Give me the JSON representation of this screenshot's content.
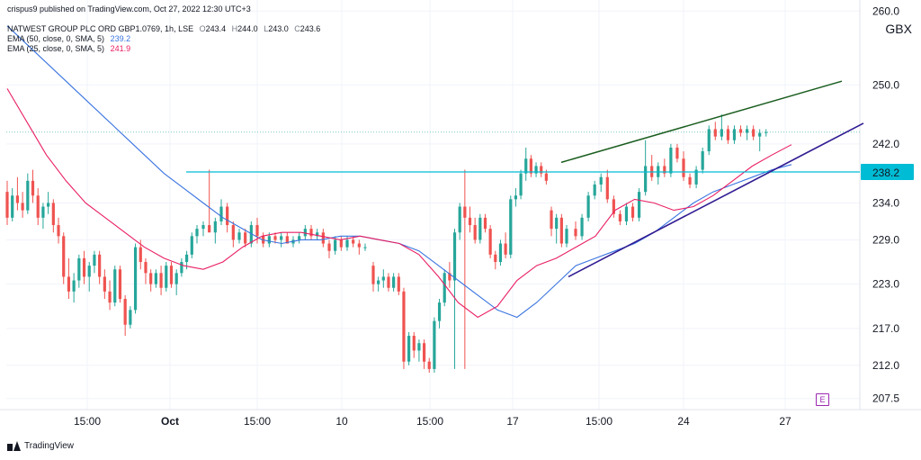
{
  "header": {
    "publisher": "crispus9 published on TradingView.com, Oct 27, 2022 12:30 UTC+3",
    "symbol_line": "NATWEST GROUP PLC ORD GBP1.0769, 1h, LSE",
    "ohlc": [
      {
        "k": "O",
        "v": "243.4"
      },
      {
        "k": "H",
        "v": "244.0"
      },
      {
        "k": "L",
        "v": "243.0"
      },
      {
        "k": "C",
        "v": "243.6"
      }
    ],
    "ema50_label": "EMA (50, close, 0, SMA, 5)",
    "ema50_value": "239.2",
    "ema25_label": "EMA (25, close, 0, SMA, 5)",
    "ema25_value": "241.9"
  },
  "currency": "GBX",
  "footer": {
    "brand": "TradingView"
  },
  "event_badge": "E",
  "colors": {
    "up": "#26a69a",
    "down": "#ef5350",
    "ema50": "#3a74e0",
    "ema25": "#e91e63",
    "hline": "#00bcd4",
    "trend_upper": "#1b5e20",
    "trend_lower": "#311b92",
    "grid": "#f0f3fa",
    "axis_text": "#131722"
  },
  "chart_data": {
    "type": "candlestick",
    "timeframe": "1h",
    "x_tick_labels": [
      "15:00",
      "Oct",
      "15:00",
      "10",
      "15:00",
      "17",
      "15:00",
      "24",
      "27"
    ],
    "y_tick_labels": [
      "260.0",
      "250.0",
      "242.0",
      "234.0",
      "229.0",
      "223.0",
      "217.0",
      "212.0",
      "207.5"
    ],
    "y_ticks": [
      260.0,
      250.0,
      242.0,
      234.0,
      229.0,
      223.0,
      217.0,
      212.0,
      207.5
    ],
    "ylim": [
      206,
      261.5
    ],
    "horizontal_line": {
      "value": 238.2,
      "label": "238.2"
    },
    "last_price": 243.6,
    "candles": [
      [
        235.5,
        237.0,
        231.0,
        232.0
      ],
      [
        232.0,
        236.0,
        231.5,
        235.0
      ],
      [
        235.0,
        237.5,
        233.0,
        234.0
      ],
      [
        234.0,
        235.5,
        232.0,
        233.0
      ],
      [
        233.0,
        238.0,
        232.5,
        237.0
      ],
      [
        237.0,
        238.5,
        234.0,
        235.0
      ],
      [
        235.0,
        236.0,
        231.0,
        232.0
      ],
      [
        232.0,
        234.0,
        230.5,
        233.5
      ],
      [
        233.5,
        235.5,
        232.5,
        234.0
      ],
      [
        234.0,
        234.5,
        230.0,
        231.0
      ],
      [
        231.0,
        232.0,
        228.5,
        229.5
      ],
      [
        229.5,
        230.0,
        223.0,
        224.0
      ],
      [
        224.0,
        226.5,
        221.0,
        222.0
      ],
      [
        222.0,
        224.5,
        220.5,
        223.5
      ],
      [
        223.5,
        227.0,
        222.5,
        226.5
      ],
      [
        226.5,
        227.5,
        223.0,
        224.0
      ],
      [
        224.0,
        226.0,
        222.0,
        225.5
      ],
      [
        225.5,
        227.5,
        224.5,
        227.0
      ],
      [
        227.0,
        227.5,
        223.0,
        224.0
      ],
      [
        224.0,
        225.0,
        221.0,
        222.0
      ],
      [
        222.0,
        223.5,
        219.5,
        220.5
      ],
      [
        220.5,
        225.5,
        220.0,
        225.0
      ],
      [
        225.0,
        225.5,
        220.5,
        221.0
      ],
      [
        221.0,
        221.5,
        216.0,
        217.5
      ],
      [
        217.5,
        220.0,
        217.0,
        219.5
      ],
      [
        219.5,
        228.5,
        219.0,
        228.0
      ],
      [
        228.0,
        229.0,
        225.0,
        226.0
      ],
      [
        226.0,
        226.5,
        223.0,
        224.5
      ],
      [
        224.5,
        225.0,
        222.0,
        223.0
      ],
      [
        223.0,
        225.0,
        222.5,
        224.5
      ],
      [
        224.5,
        225.5,
        221.5,
        222.5
      ],
      [
        222.5,
        226.0,
        222.0,
        225.5
      ],
      [
        225.5,
        226.0,
        222.5,
        223.0
      ],
      [
        223.0,
        225.0,
        221.5,
        224.5
      ],
      [
        224.5,
        226.5,
        224.0,
        226.0
      ],
      [
        226.0,
        227.5,
        225.0,
        227.0
      ],
      [
        227.0,
        230.0,
        226.5,
        229.5
      ],
      [
        229.5,
        231.0,
        228.5,
        230.5
      ],
      [
        230.5,
        231.5,
        229.5,
        231.0
      ],
      [
        231.0,
        238.5,
        230.5,
        230.0
      ],
      [
        230.0,
        232.0,
        228.5,
        231.5
      ],
      [
        231.5,
        234.5,
        231.0,
        233.5
      ],
      [
        233.5,
        234.0,
        230.0,
        231.0
      ],
      [
        231.0,
        231.5,
        228.0,
        229.0
      ],
      [
        229.0,
        230.5,
        228.5,
        230.0
      ],
      [
        230.0,
        230.5,
        228.0,
        228.5
      ],
      [
        228.5,
        231.5,
        228.0,
        231.0
      ],
      [
        231.0,
        232.0,
        228.5,
        229.5
      ],
      [
        229.5,
        230.0,
        228.0,
        228.5
      ],
      [
        228.5,
        230.0,
        228.0,
        229.5
      ],
      [
        229.5,
        230.0,
        228.5,
        229.0
      ],
      [
        229.0,
        230.0,
        228.0,
        229.5
      ],
      [
        229.5,
        230.0,
        228.5,
        228.5
      ],
      [
        228.5,
        229.5,
        228.0,
        229.0
      ],
      [
        229.0,
        230.0,
        228.5,
        229.5
      ],
      [
        229.5,
        231.0,
        229.0,
        230.5
      ],
      [
        230.5,
        231.0,
        229.0,
        229.5
      ],
      [
        229.5,
        230.5,
        229.0,
        230.0
      ],
      [
        230.0,
        230.5,
        228.0,
        228.5
      ],
      [
        228.5,
        229.0,
        226.5,
        227.5
      ],
      [
        227.5,
        229.5,
        227.0,
        229.0
      ],
      [
        229.0,
        229.5,
        227.5,
        228.0
      ],
      [
        228.0,
        229.5,
        227.5,
        229.0
      ],
      [
        229.0,
        229.5,
        228.0,
        228.5
      ],
      [
        228.5,
        229.0,
        227.0,
        228.0
      ],
      [
        228.0,
        228.5,
        227.5,
        228.0
      ],
      [
        225.5,
        226.0,
        222.0,
        223.0
      ],
      [
        223.0,
        224.0,
        222.0,
        223.5
      ],
      [
        223.5,
        225.0,
        222.5,
        224.0
      ],
      [
        224.0,
        224.5,
        222.0,
        222.5
      ],
      [
        222.5,
        224.5,
        222.0,
        224.0
      ],
      [
        224.0,
        224.5,
        221.5,
        222.0
      ],
      [
        222.0,
        222.5,
        211.5,
        212.5
      ],
      [
        212.5,
        216.5,
        212.0,
        216.0
      ],
      [
        216.0,
        216.5,
        213.0,
        214.0
      ],
      [
        214.0,
        215.5,
        212.5,
        215.0
      ],
      [
        215.0,
        215.5,
        211.5,
        212.5
      ],
      [
        212.5,
        213.0,
        211.0,
        211.5
      ],
      [
        211.5,
        218.5,
        211.0,
        218.0
      ],
      [
        218.0,
        221.0,
        217.0,
        220.5
      ],
      [
        220.5,
        225.0,
        220.0,
        224.5
      ],
      [
        224.5,
        226.0,
        222.5,
        223.5
      ],
      [
        223.5,
        230.5,
        211.5,
        230.0
      ],
      [
        230.0,
        234.0,
        229.0,
        233.5
      ],
      [
        233.5,
        238.5,
        211.5,
        232.0
      ],
      [
        232.0,
        233.5,
        230.0,
        231.0
      ],
      [
        231.0,
        232.0,
        228.5,
        229.0
      ],
      [
        229.0,
        232.5,
        228.5,
        232.0
      ],
      [
        232.0,
        232.5,
        230.0,
        230.5
      ],
      [
        230.5,
        231.0,
        226.5,
        227.0
      ],
      [
        227.0,
        227.5,
        225.0,
        226.0
      ],
      [
        226.0,
        229.0,
        225.5,
        228.5
      ],
      [
        228.5,
        230.0,
        226.5,
        227.0
      ],
      [
        227.0,
        235.0,
        226.5,
        234.5
      ],
      [
        234.5,
        236.0,
        233.5,
        235.0
      ],
      [
        235.0,
        238.5,
        234.5,
        238.0
      ],
      [
        238.0,
        241.5,
        237.0,
        240.0
      ],
      [
        240.0,
        240.5,
        237.5,
        238.0
      ],
      [
        238.0,
        239.5,
        237.5,
        239.0
      ],
      [
        239.0,
        239.5,
        237.5,
        238.0
      ],
      [
        238.0,
        238.5,
        236.5,
        237.0
      ],
      [
        233.0,
        233.5,
        229.5,
        230.5
      ],
      [
        230.5,
        232.5,
        228.5,
        232.0
      ],
      [
        232.0,
        232.5,
        228.0,
        228.5
      ],
      [
        228.5,
        231.0,
        228.0,
        230.5
      ],
      [
        230.5,
        231.5,
        229.0,
        229.5
      ],
      [
        229.5,
        232.5,
        229.0,
        232.0
      ],
      [
        232.0,
        235.5,
        231.5,
        235.0
      ],
      [
        235.0,
        237.0,
        234.5,
        236.5
      ],
      [
        236.5,
        238.0,
        235.5,
        237.5
      ],
      [
        237.5,
        238.5,
        234.0,
        234.5
      ],
      [
        234.5,
        235.0,
        232.0,
        232.5
      ],
      [
        232.5,
        233.0,
        231.0,
        231.5
      ],
      [
        231.5,
        234.0,
        231.0,
        233.5
      ],
      [
        233.5,
        234.0,
        231.5,
        232.0
      ],
      [
        232.0,
        236.0,
        231.5,
        235.5
      ],
      [
        235.5,
        242.5,
        235.0,
        239.0
      ],
      [
        239.0,
        240.5,
        237.0,
        237.5
      ],
      [
        237.5,
        239.5,
        236.5,
        239.0
      ],
      [
        239.0,
        240.0,
        237.5,
        238.0
      ],
      [
        238.0,
        242.0,
        237.5,
        241.5
      ],
      [
        241.5,
        242.0,
        239.5,
        240.0
      ],
      [
        240.0,
        241.0,
        237.0,
        237.5
      ],
      [
        237.5,
        238.0,
        236.0,
        236.5
      ],
      [
        236.5,
        239.0,
        236.0,
        238.5
      ],
      [
        238.5,
        241.5,
        238.0,
        241.0
      ],
      [
        241.0,
        244.5,
        240.5,
        244.0
      ],
      [
        244.0,
        245.0,
        242.5,
        243.0
      ],
      [
        243.0,
        246.0,
        242.5,
        244.0
      ],
      [
        244.0,
        244.5,
        242.0,
        242.5
      ],
      [
        242.5,
        244.5,
        242.0,
        244.0
      ],
      [
        244.0,
        244.5,
        243.0,
        243.5
      ],
      [
        243.5,
        244.5,
        242.5,
        244.0
      ],
      [
        244.0,
        244.5,
        242.5,
        243.0
      ],
      [
        243.0,
        244.0,
        241.0,
        243.5
      ],
      [
        243.5,
        244.0,
        243.0,
        243.6
      ]
    ],
    "series": [
      {
        "name": "EMA (50, close, 0, SMA, 5)",
        "values": [
          258.0,
          255.5,
          253.0,
          250.5,
          248.0,
          245.5,
          243.0,
          240.5,
          238.0,
          236.0,
          234.0,
          232.0,
          230.5,
          229.0,
          228.5,
          229.0,
          229.0,
          229.5,
          229.5,
          229.0,
          228.5,
          227.5,
          225.5,
          223.5,
          221.5,
          219.5,
          218.5,
          220.5,
          223.0,
          225.5,
          226.5,
          227.5,
          228.5,
          230.0,
          232.0,
          234.0,
          235.5,
          236.5,
          237.5,
          238.5,
          239.2
        ]
      },
      {
        "name": "EMA (25, close, 0, SMA, 5)",
        "values": [
          249.5,
          245.0,
          240.5,
          237.0,
          234.0,
          232.0,
          230.0,
          228.0,
          226.5,
          225.5,
          225.0,
          226.0,
          228.0,
          229.5,
          230.0,
          230.0,
          229.5,
          229.0,
          229.5,
          229.0,
          228.5,
          227.0,
          224.0,
          220.5,
          218.5,
          220.0,
          223.5,
          225.5,
          226.5,
          228.0,
          229.5,
          233.0,
          234.5,
          234.0,
          233.0,
          233.5,
          235.0,
          237.0,
          239.0,
          240.5,
          241.9
        ]
      }
    ],
    "trendlines": [
      {
        "name": "upper",
        "from": 239.5,
        "to": 250.5
      },
      {
        "name": "lower",
        "from": 224.0,
        "to": 244.8
      }
    ]
  }
}
